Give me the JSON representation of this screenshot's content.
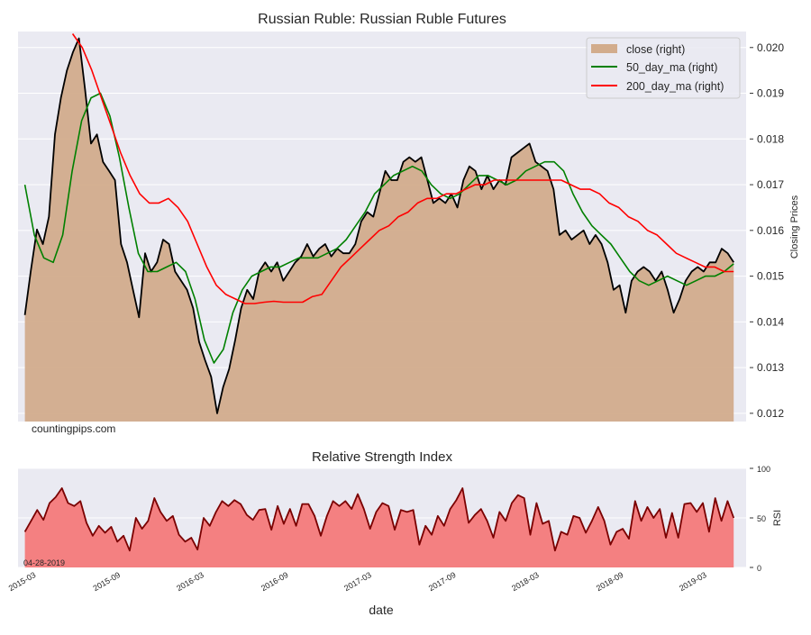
{
  "chart_data": [
    {
      "type": "area",
      "title": "Russian Ruble: Russian Ruble Futures",
      "xlabel": "",
      "ylabel": "Closing Prices",
      "ylim": [
        0.01182,
        0.02035
      ],
      "xlim": [
        "2015-01-20",
        "2019-05-25"
      ],
      "yticks": [
        "0.012",
        "0.013",
        "0.014",
        "0.015",
        "0.016",
        "0.017",
        "0.018",
        "0.019",
        "0.020"
      ],
      "grid": true,
      "legend_position": "top-right",
      "watermark": "countingpips.com",
      "series": [
        {
          "name": "close (right)",
          "kind": "area",
          "line_color": "#000000",
          "fill_color": "#d2ac8c",
          "start": "2015-02-04",
          "end": "2019-04-28",
          "values": [
            0.01415,
            0.01513,
            0.01602,
            0.0157,
            0.0163,
            0.0181,
            0.0189,
            0.0195,
            0.0199,
            0.0202,
            0.0191,
            0.0179,
            0.0181,
            0.0175,
            0.0173,
            0.0171,
            0.0157,
            0.0153,
            0.0147,
            0.0141,
            0.0155,
            0.0151,
            0.0153,
            0.0158,
            0.0157,
            0.0151,
            0.0149,
            0.0147,
            0.0143,
            0.01356,
            0.01316,
            0.0128,
            0.012,
            0.01257,
            0.01297,
            0.0136,
            0.0143,
            0.0147,
            0.0145,
            0.0151,
            0.0153,
            0.0151,
            0.0153,
            0.0149,
            0.0151,
            0.0153,
            0.01543,
            0.0157,
            0.01543,
            0.0156,
            0.0157,
            0.01543,
            0.0156,
            0.0155,
            0.0155,
            0.0157,
            0.0162,
            0.0164,
            0.0163,
            0.0168,
            0.0173,
            0.0171,
            0.0171,
            0.0175,
            0.0176,
            0.0175,
            0.0176,
            0.0171,
            0.0166,
            0.0167,
            0.0166,
            0.0168,
            0.0165,
            0.0171,
            0.0174,
            0.0173,
            0.0169,
            0.0172,
            0.0169,
            0.0171,
            0.017,
            0.0176,
            0.0177,
            0.0178,
            0.0179,
            0.0175,
            0.0174,
            0.0173,
            0.0169,
            0.0159,
            0.016,
            0.0158,
            0.0159,
            0.016,
            0.0157,
            0.0159,
            0.0157,
            0.0153,
            0.0147,
            0.0148,
            0.0142,
            0.0149,
            0.0151,
            0.0152,
            0.0151,
            0.0149,
            0.0151,
            0.0147,
            0.0142,
            0.0145,
            0.0149,
            0.0151,
            0.0152,
            0.0151,
            0.0153,
            0.0153,
            0.0156,
            0.0155,
            0.0153
          ]
        },
        {
          "name": "50_day_ma (right)",
          "kind": "line",
          "line_color": "#008000",
          "start": "2015-02-04",
          "end": "2019-04-28",
          "values": [
            0.017,
            0.0159,
            0.0154,
            0.0153,
            0.0159,
            0.0173,
            0.0184,
            0.0189,
            0.019,
            0.0185,
            0.0176,
            0.0165,
            0.0155,
            0.0151,
            0.0151,
            0.0152,
            0.0153,
            0.0151,
            0.0145,
            0.0136,
            0.0131,
            0.0134,
            0.0142,
            0.0147,
            0.015,
            0.0151,
            0.0152,
            0.0152,
            0.0153,
            0.0154,
            0.0154,
            0.0154,
            0.0155,
            0.0156,
            0.0158,
            0.0161,
            0.0164,
            0.0168,
            0.017,
            0.0172,
            0.0173,
            0.0174,
            0.0173,
            0.017,
            0.0168,
            0.0167,
            0.0168,
            0.017,
            0.0172,
            0.0172,
            0.0171,
            0.017,
            0.0171,
            0.0173,
            0.0174,
            0.0175,
            0.0175,
            0.0173,
            0.0168,
            0.0164,
            0.0161,
            0.0159,
            0.0157,
            0.0154,
            0.0151,
            0.0149,
            0.0148,
            0.0149,
            0.015,
            0.0149,
            0.0148,
            0.0149,
            0.015,
            0.015,
            0.0151,
            0.01527
          ]
        },
        {
          "name": "200_day_ma (right)",
          "kind": "line",
          "line_color": "#ff0000",
          "start": "2015-05-19",
          "end": "2019-04-28",
          "values": [
            0.0203,
            0.02,
            0.0195,
            0.0189,
            0.0183,
            0.0177,
            0.0172,
            0.0168,
            0.0166,
            0.0166,
            0.0167,
            0.0165,
            0.0162,
            0.0157,
            0.0152,
            0.0148,
            0.0146,
            0.0145,
            0.0144,
            0.0144,
            0.01443,
            0.01445,
            0.01443,
            0.01443,
            0.01443,
            0.01455,
            0.0146,
            0.0149,
            0.0152,
            0.0154,
            0.0156,
            0.0158,
            0.016,
            0.0161,
            0.0163,
            0.0164,
            0.0166,
            0.0167,
            0.0167,
            0.0168,
            0.0168,
            0.0169,
            0.017,
            0.017,
            0.0171,
            0.0171,
            0.0171,
            0.0171,
            0.0171,
            0.0171,
            0.0171,
            0.0171,
            0.017,
            0.0169,
            0.0169,
            0.0168,
            0.0166,
            0.0165,
            0.0163,
            0.0162,
            0.016,
            0.0159,
            0.0157,
            0.0155,
            0.0154,
            0.0153,
            0.0152,
            0.0152,
            0.0151,
            0.0151
          ]
        }
      ]
    },
    {
      "type": "area",
      "title": "Relative Strength Index",
      "xlabel": "date",
      "ylabel": "RSI",
      "ylim": [
        0,
        100
      ],
      "xlim": [
        "2015-01-20",
        "2019-05-25"
      ],
      "yticks": [
        "0",
        "50",
        "100"
      ],
      "xticks": [
        "2015-03",
        "2015-09",
        "2016-03",
        "2016-09",
        "2017-03",
        "2017-09",
        "2018-03",
        "2018-09",
        "2019-03"
      ],
      "annotation": "04-28-2019",
      "grid": true,
      "series": [
        {
          "name": "RSI",
          "kind": "area",
          "line_color": "#7a0000",
          "fill_color": "#f47a7a",
          "start": "2015-02-04",
          "end": "2019-04-28",
          "values": [
            36,
            47,
            58,
            48,
            65,
            71,
            80,
            65,
            62,
            67,
            45,
            32,
            42,
            35,
            41,
            26,
            32,
            17,
            50,
            39,
            47,
            70,
            56,
            47,
            52,
            33,
            26,
            30,
            18,
            50,
            42,
            56,
            67,
            62,
            68,
            64,
            53,
            48,
            58,
            59,
            38,
            62,
            44,
            59,
            42,
            64,
            64,
            52,
            32,
            52,
            67,
            62,
            67,
            59,
            74,
            59,
            39,
            56,
            65,
            62,
            38,
            58,
            56,
            58,
            23,
            42,
            33,
            52,
            42,
            59,
            68,
            80,
            45,
            53,
            59,
            47,
            30,
            56,
            47,
            65,
            73,
            70,
            33,
            65,
            44,
            47,
            17,
            36,
            33,
            52,
            50,
            35,
            47,
            61,
            47,
            23,
            36,
            39,
            29,
            67,
            47,
            61,
            50,
            59,
            30,
            55,
            30,
            64,
            65,
            56,
            65,
            36,
            70,
            47,
            67,
            50
          ]
        }
      ]
    }
  ]
}
